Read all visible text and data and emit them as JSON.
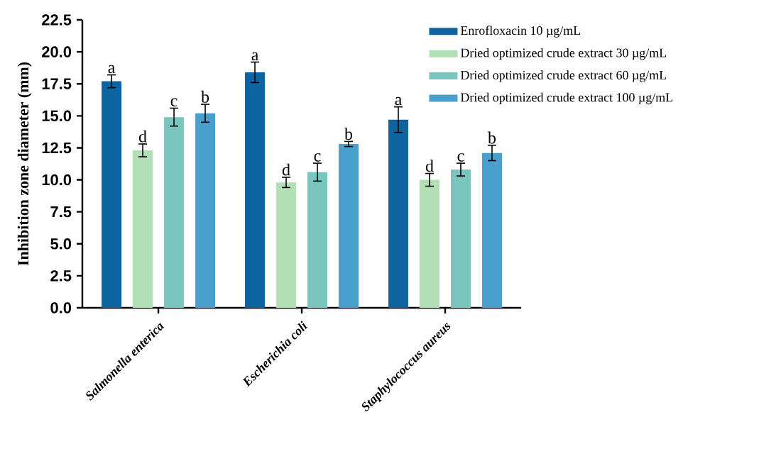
{
  "chart_data": {
    "type": "bar",
    "ylabel": "Inhibition zone diameter (mm)",
    "categories": [
      "Salmonella enterica",
      "Escherichia coli",
      "Staphylococcus aureus"
    ],
    "series": [
      {
        "name": "Enrofloxacin 10 µg/mL",
        "color": "#0e64a0",
        "values": [
          17.7,
          18.4,
          14.7
        ],
        "errors": [
          0.5,
          0.8,
          1.0
        ],
        "value_labels": [
          "a",
          "a",
          "a"
        ]
      },
      {
        "name": "Dried optimized crude extract 30 µg/mL",
        "color": "#b3dfb5",
        "values": [
          12.3,
          9.8,
          10.0
        ],
        "errors": [
          0.5,
          0.4,
          0.5
        ],
        "value_labels": [
          "d",
          "d",
          "d"
        ]
      },
      {
        "name": "Dried optimized crude extract 60 µg/mL",
        "color": "#7ac5bd",
        "values": [
          14.9,
          10.6,
          10.8
        ],
        "errors": [
          0.7,
          0.7,
          0.5
        ],
        "value_labels": [
          "c",
          "c",
          "c"
        ]
      },
      {
        "name": "Dried optimized crude extract 100 µg/mL",
        "color": "#4aa0cc",
        "values": [
          15.2,
          12.8,
          12.1
        ],
        "errors": [
          0.7,
          0.2,
          0.6
        ],
        "value_labels": [
          "b",
          "b",
          "b"
        ]
      }
    ],
    "ylim": [
      0,
      22.5
    ],
    "yticks": [
      {
        "value": 0,
        "label": "0.0"
      },
      {
        "value": 2.5,
        "label": "2.5"
      },
      {
        "value": 5,
        "label": "5.0"
      },
      {
        "value": 7.5,
        "label": "7.5"
      },
      {
        "value": 10,
        "label": "10.0"
      },
      {
        "value": 12.5,
        "label": "12.5"
      },
      {
        "value": 15,
        "label": "15.0"
      },
      {
        "value": 17.5,
        "label": "17.5"
      },
      {
        "value": 20,
        "label": "20.0"
      },
      {
        "value": 22.5,
        "label": "22.5"
      }
    ],
    "grid": false,
    "legend": "top right"
  }
}
